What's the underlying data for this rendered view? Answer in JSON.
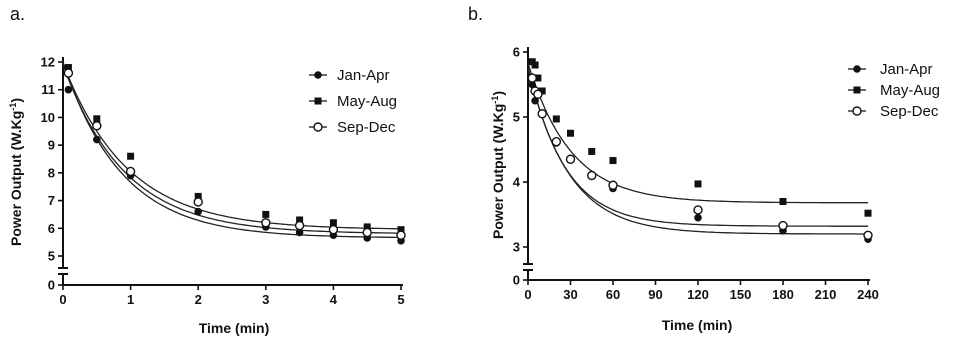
{
  "chart_data": [
    {
      "panel_label": "a.",
      "type": "scatter",
      "xlabel": "Time (min)",
      "ylabel": "Power Output (W.Kg",
      "ylabel_sup": "-1",
      "ylabel_close": ")",
      "xlim": [
        0,
        5
      ],
      "ylim": [
        0,
        12
      ],
      "y_axis_break": [
        1,
        5
      ],
      "xticks": [
        0,
        1,
        2,
        3,
        4,
        5
      ],
      "yticks": [
        0,
        5,
        6,
        7,
        8,
        9,
        10,
        11,
        12
      ],
      "legend_position": "top-right",
      "series": [
        {
          "name": "Jan-Apr",
          "marker": "filled-circle",
          "x": [
            0.08,
            0.5,
            1,
            2,
            3,
            3.5,
            4,
            4.5,
            5
          ],
          "y": [
            11.0,
            9.2,
            7.9,
            6.6,
            6.05,
            5.85,
            5.75,
            5.65,
            5.55
          ],
          "fit": {
            "plateau": 5.65,
            "span": 6.35,
            "k": 1.15
          }
        },
        {
          "name": "May-Aug",
          "marker": "filled-square",
          "x": [
            0.08,
            0.5,
            1,
            2,
            3,
            3.5,
            4,
            4.5,
            5
          ],
          "y": [
            11.8,
            9.95,
            8.6,
            7.15,
            6.5,
            6.3,
            6.2,
            6.05,
            5.95
          ],
          "fit": {
            "plateau": 5.95,
            "span": 6.0,
            "k": 1.05
          }
        },
        {
          "name": "Sep-Dec",
          "marker": "open-circle",
          "x": [
            0.08,
            0.5,
            1,
            2,
            3,
            3.5,
            4,
            4.5,
            5
          ],
          "y": [
            11.6,
            9.7,
            8.05,
            6.95,
            6.2,
            6.1,
            5.95,
            5.85,
            5.75
          ],
          "fit": {
            "plateau": 5.8,
            "span": 6.1,
            "k": 1.1
          }
        }
      ]
    },
    {
      "panel_label": "b.",
      "type": "scatter",
      "xlabel": "Time (min)",
      "ylabel": "Power Output (W.Kg",
      "ylabel_sup": "-1",
      "ylabel_close": ")",
      "xlim": [
        0,
        240
      ],
      "ylim": [
        0,
        6
      ],
      "y_axis_break": [
        1,
        3
      ],
      "xticks": [
        0,
        30,
        60,
        90,
        120,
        150,
        180,
        210,
        240
      ],
      "yticks": [
        0,
        3,
        4,
        5,
        6
      ],
      "legend_position": "top-right",
      "series": [
        {
          "name": "Jan-Apr",
          "marker": "filled-circle",
          "x": [
            3,
            5,
            7,
            10,
            20,
            30,
            45,
            60,
            120,
            180,
            240
          ],
          "y": [
            5.5,
            5.25,
            5.35,
            5.05,
            4.6,
            4.35,
            4.1,
            3.9,
            3.45,
            3.25,
            3.12
          ],
          "fit": {
            "plateau": 3.2,
            "span": 2.55,
            "k": 0.035
          }
        },
        {
          "name": "May-Aug",
          "marker": "filled-square",
          "x": [
            3,
            5,
            7,
            10,
            20,
            30,
            45,
            60,
            120,
            180,
            240
          ],
          "y": [
            5.85,
            5.8,
            5.6,
            5.4,
            4.97,
            4.75,
            4.47,
            4.33,
            3.97,
            3.7,
            3.52
          ],
          "fit": {
            "plateau": 3.68,
            "span": 2.15,
            "k": 0.033
          }
        },
        {
          "name": "Sep-Dec",
          "marker": "open-circle",
          "x": [
            3,
            5,
            7,
            10,
            20,
            30,
            45,
            60,
            120,
            180,
            240
          ],
          "y": [
            5.6,
            5.4,
            5.35,
            5.05,
            4.62,
            4.35,
            4.1,
            3.95,
            3.57,
            3.33,
            3.18
          ],
          "fit": {
            "plateau": 3.32,
            "span": 2.45,
            "k": 0.038
          }
        }
      ]
    }
  ]
}
